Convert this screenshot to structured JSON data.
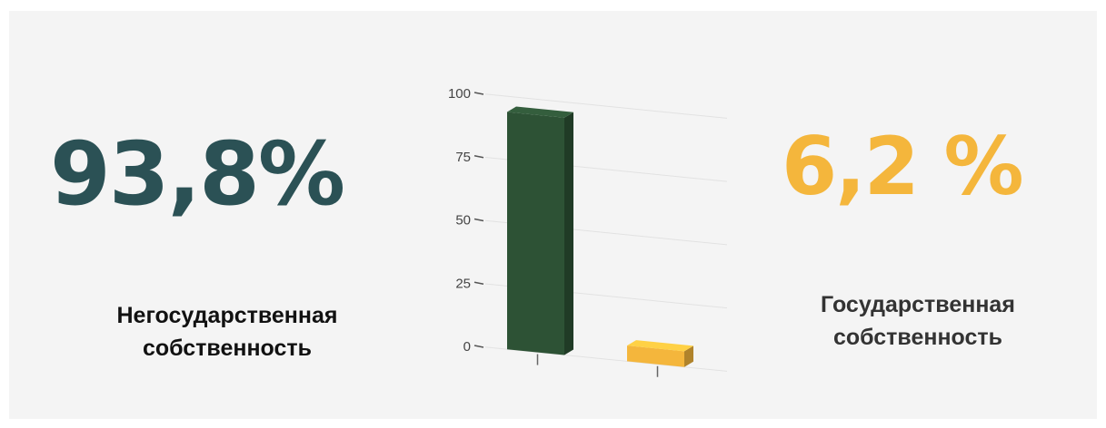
{
  "left_stat": {
    "percent": "93,8%",
    "caption_line1": "Негосударственная",
    "caption_line2": "собственность",
    "color": "#2b5155"
  },
  "right_stat": {
    "percent": "6,2 %",
    "caption_line1": "Государственная",
    "caption_line2": "собственность",
    "color": "#f4b63c"
  },
  "chart_data": {
    "type": "bar",
    "categories": [
      "",
      ""
    ],
    "values": [
      93.8,
      6.2
    ],
    "colors": [
      "#2d5235",
      "#f4b63c"
    ],
    "ylim": [
      0,
      100
    ],
    "yticks": [
      "0",
      "25",
      "50",
      "75",
      "100"
    ],
    "grid": true,
    "style": "3d"
  }
}
